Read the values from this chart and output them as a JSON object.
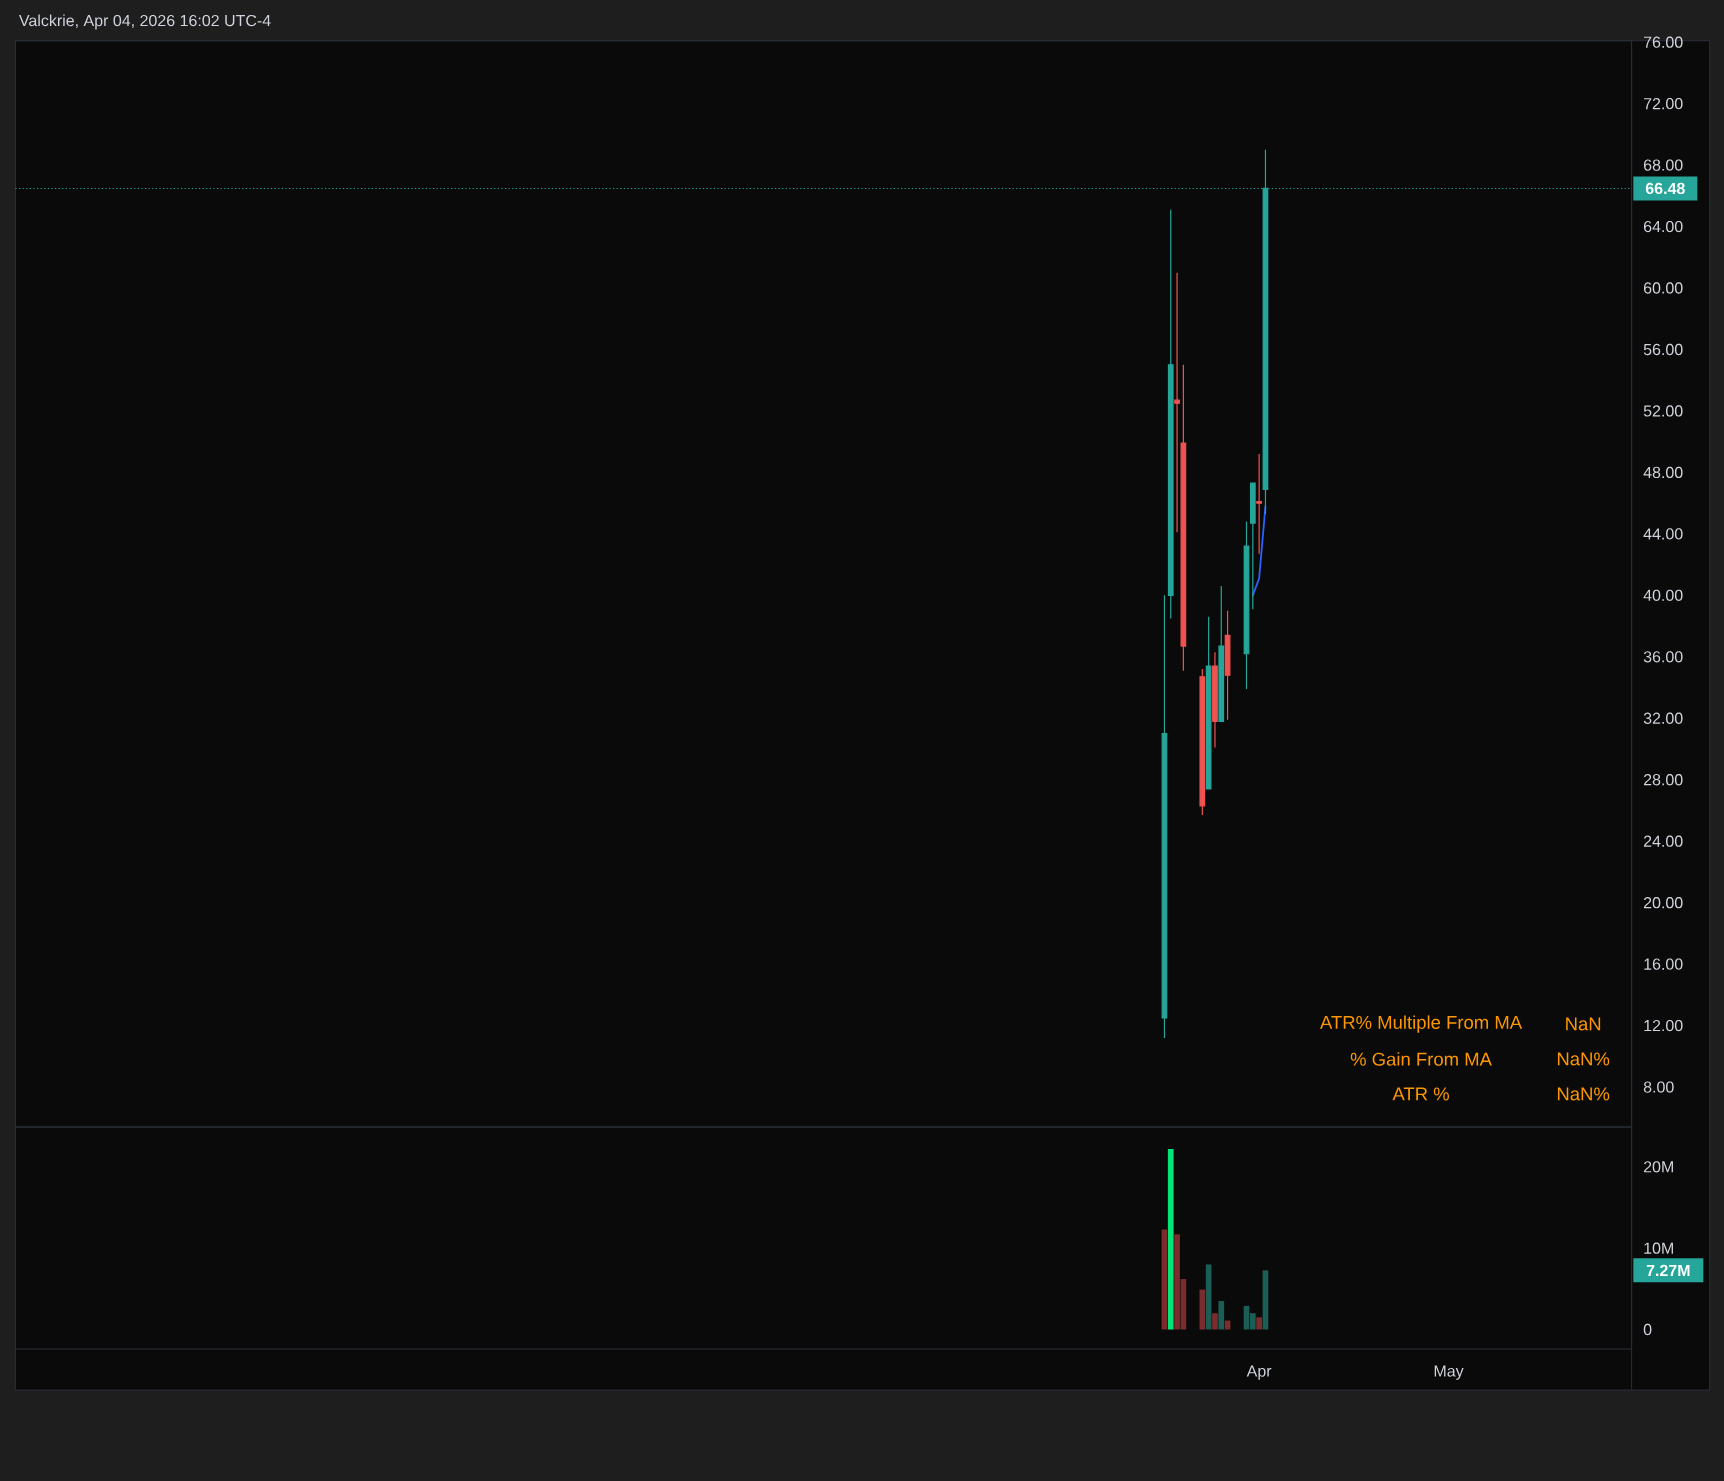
{
  "chart_data": [
    {
      "type": "candlestick",
      "title": "Valckrie, Apr 04, 2026 16:02 UTC-4",
      "x": [
        "2026-03-17",
        "2026-03-18",
        "2026-03-19",
        "2026-03-20",
        "2026-03-23",
        "2026-03-24",
        "2026-03-25",
        "2026-03-26",
        "2026-03-27",
        "2026-03-30",
        "2026-03-31",
        "2026-04-01",
        "2026-04-02"
      ],
      "ohlc": [
        [
          12.5,
          40.0,
          11.2,
          31.0
        ],
        [
          40.0,
          65.1,
          38.5,
          55.0
        ],
        [
          52.7,
          61.0,
          44.1,
          52.5
        ],
        [
          49.9,
          55.0,
          35.1,
          36.7
        ],
        [
          34.7,
          35.2,
          25.7,
          26.3
        ],
        [
          27.4,
          38.6,
          27.4,
          35.4
        ],
        [
          35.4,
          36.3,
          30.1,
          31.8
        ],
        [
          31.8,
          40.6,
          31.8,
          36.7
        ],
        [
          37.4,
          39.0,
          31.9,
          34.8
        ],
        [
          36.2,
          44.8,
          33.9,
          43.2
        ],
        [
          44.7,
          47.3,
          39.1,
          47.3
        ],
        [
          46.1,
          49.2,
          42.7,
          46.0
        ],
        [
          46.9,
          69.0,
          45.3,
          66.48
        ]
      ],
      "colors": [
        "#26a69a",
        "#26a69a",
        "#ef5350",
        "#ef5350",
        "#ef5350",
        "#26a69a",
        "#ef5350",
        "#26a69a",
        "#ef5350",
        "#26a69a",
        "#26a69a",
        "#ef5350",
        "#26a69a"
      ],
      "series": [
        {
          "type": "line",
          "x": [
            "2026-03-31",
            "2026-04-01",
            "2026-04-02"
          ],
          "values": [
            40.0,
            41.1,
            45.8
          ],
          "color": "#2962ff"
        }
      ],
      "xlim": [
        "2025-09-16",
        "2026-05-30"
      ],
      "ylim": [
        5.4,
        76.1
      ],
      "yticks": [
        {
          "value": 8,
          "label": "8.00"
        },
        {
          "value": 12,
          "label": "12.00"
        },
        {
          "value": 16,
          "label": "16.00"
        },
        {
          "value": 20,
          "label": "20.00"
        },
        {
          "value": 24,
          "label": "24.00"
        },
        {
          "value": 28,
          "label": "28.00"
        },
        {
          "value": 32,
          "label": "32.00"
        },
        {
          "value": 36,
          "label": "36.00"
        },
        {
          "value": 40,
          "label": "40.00"
        },
        {
          "value": 44,
          "label": "44.00"
        },
        {
          "value": 48,
          "label": "48.00"
        },
        {
          "value": 52,
          "label": "52.00"
        },
        {
          "value": 56,
          "label": "56.00"
        },
        {
          "value": 60,
          "label": "60.00"
        },
        {
          "value": 64,
          "label": "64.00"
        },
        {
          "value": 68,
          "label": "68.00"
        },
        {
          "value": 72,
          "label": "72.00"
        },
        {
          "value": 76,
          "label": "76.00"
        }
      ],
      "tick_labels": "y",
      "ref_lines": [
        {
          "axis": "y",
          "value": 66.48,
          "label": "66.48",
          "color": "#26a69a",
          "line_style": "dotted"
        }
      ],
      "annotations": [
        "ATR% Multiple From MA",
        "NaN",
        "% Gain From MA",
        "NaN%",
        "ATR %",
        "NaN%"
      ]
    },
    {
      "type": "bar",
      "x": [
        "2026-03-17",
        "2026-03-18",
        "2026-03-19",
        "2026-03-20",
        "2026-03-23",
        "2026-03-24",
        "2026-03-25",
        "2026-03-26",
        "2026-03-27",
        "2026-03-30",
        "2026-03-31",
        "2026-04-01",
        "2026-04-02"
      ],
      "values": [
        12.3,
        22.2,
        11.7,
        6.2,
        4.9,
        8.0,
        2.0,
        3.5,
        1.1,
        2.9,
        2.0,
        1.5,
        7.27
      ],
      "colors": [
        "#7b2c2c",
        "#00e676",
        "#7b2c2c",
        "#7b2c2c",
        "#7b2c2c",
        "#1a5e55",
        "#7b2c2c",
        "#1a5e55",
        "#7b2c2c",
        "#1a5e55",
        "#1a5e55",
        "#7b2c2c",
        "#1a5e55"
      ],
      "xlim": [
        "2025-09-16",
        "2026-05-30"
      ],
      "xticks": [
        {
          "value": "2026-04-01",
          "label": "Apr"
        },
        {
          "value": "2026-05-01",
          "label": "May"
        }
      ],
      "ylim": [
        -2.4,
        24.9
      ],
      "yticks": [
        0,
        {
          "value": 10,
          "label": "10M"
        },
        {
          "value": 20,
          "label": "20M"
        }
      ],
      "annotations": [
        "7.27M"
      ]
    }
  ]
}
